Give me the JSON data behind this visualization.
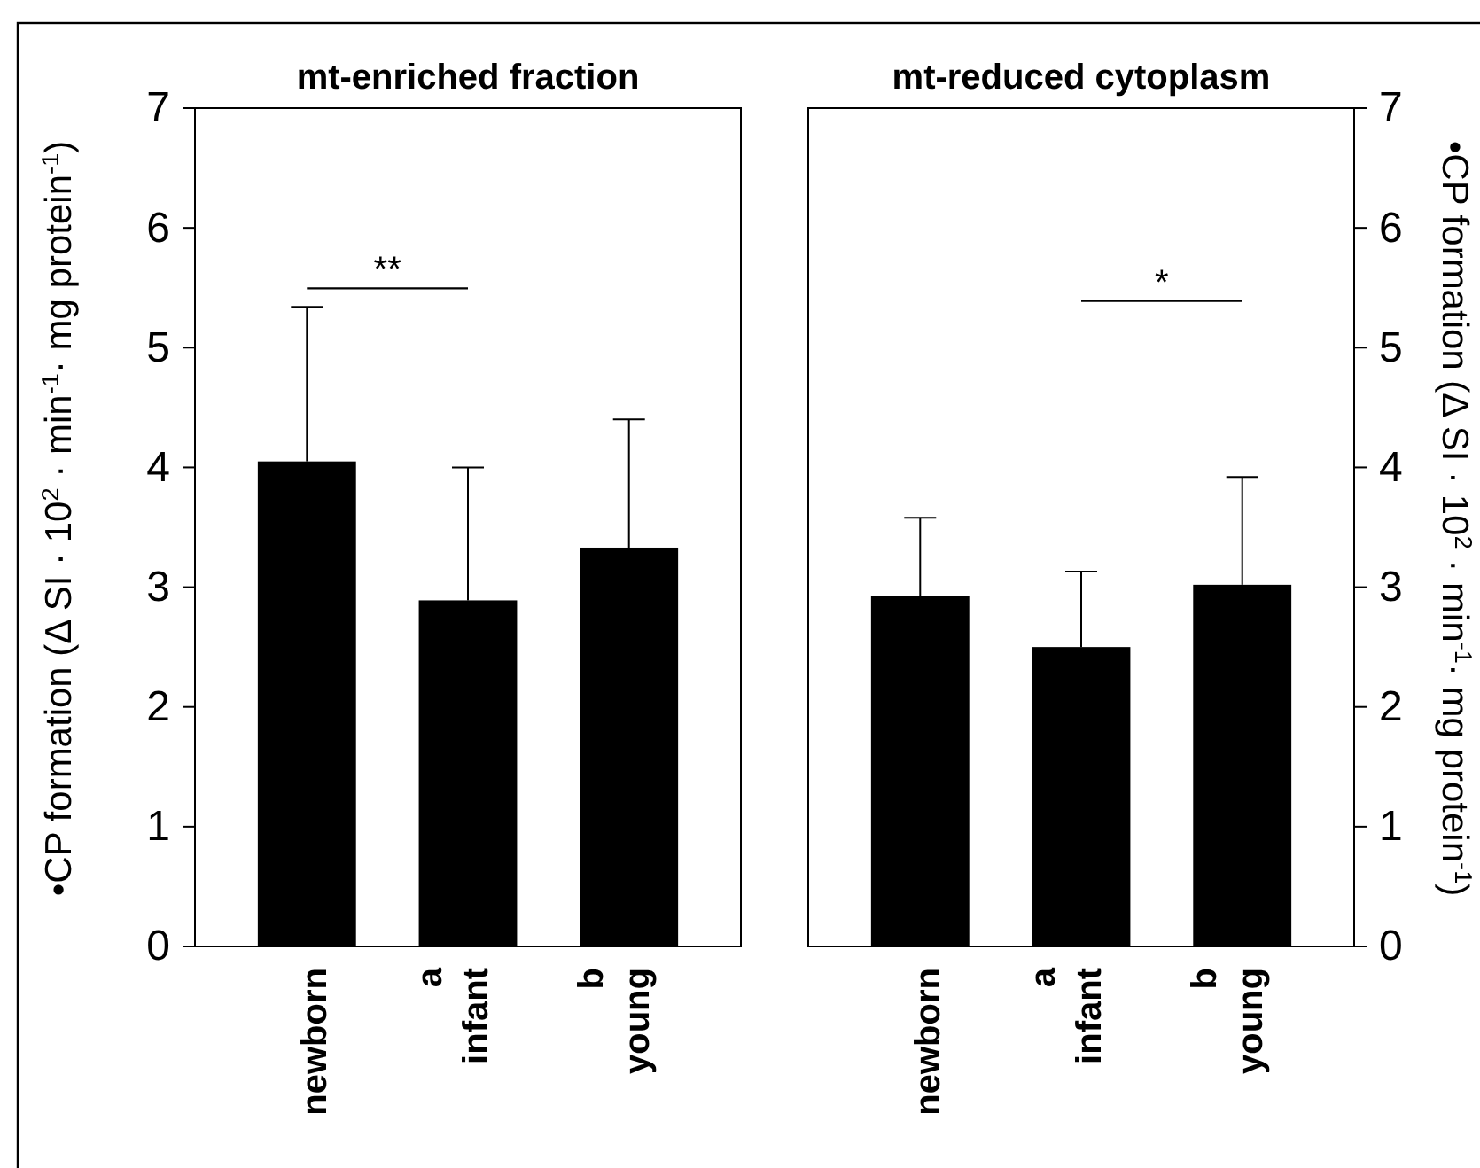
{
  "chart_data": [
    {
      "type": "bar",
      "title": "mt-enriched fraction",
      "ylabel": "•CP formation (Δ SI · 10$^{2}$ · min$^{-1}$· mg protein$^{-1}$)",
      "categories": [
        "newborn",
        "infant",
        "young"
      ],
      "series": [
        {
          "color": "#000000",
          "values": [
            4.05,
            2.89,
            3.33
          ],
          "errors": [
            [
              4.05,
              5.34
            ],
            [
              2.89,
              4.0
            ],
            [
              3.33,
              4.4
            ]
          ]
        }
      ],
      "ylim": [
        0,
        7
      ],
      "yticks": [
        0,
        1,
        2,
        3,
        4,
        5,
        6,
        7
      ],
      "annotations": [
        "**",
        "a",
        "b"
      ]
    },
    {
      "type": "bar",
      "title": "mt-reduced cytoplasm",
      "y2label": "•CP formation (Δ SI · 10$^{2}$ · min$^{-1}$· mg protein$^{-1}$)",
      "categories": [
        "newborn",
        "infant",
        "young"
      ],
      "series": [
        {
          "color": "#000000",
          "axis": "y2",
          "values": [
            2.93,
            2.5,
            3.02
          ],
          "errors": [
            [
              2.93,
              3.58
            ],
            [
              2.5,
              3.13
            ],
            [
              3.02,
              3.92
            ]
          ]
        }
      ],
      "y2lim": [
        0,
        7
      ],
      "y2ticks": [
        0,
        1,
        2,
        3,
        4,
        5,
        6,
        7
      ],
      "annotations": [
        "*",
        "a",
        "b"
      ]
    }
  ]
}
